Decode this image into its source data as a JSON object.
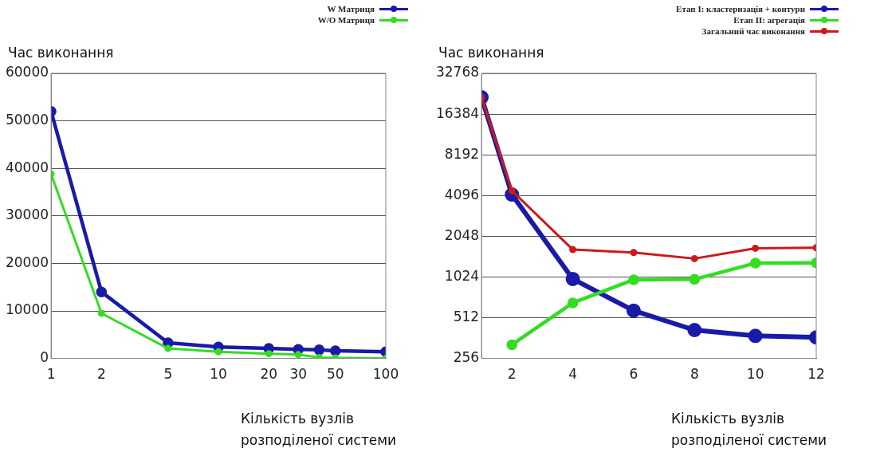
{
  "chart_data": [
    {
      "type": "line",
      "ylabel": "Час виконання",
      "xlabel": "Кількість вузлів розподіленої системи",
      "log": "x",
      "grid": "y",
      "legend": "top right",
      "marker": "circle",
      "line_style": "solid",
      "x": [
        1,
        2,
        5,
        10,
        20,
        30,
        40,
        50,
        100
      ],
      "xlim": [
        1,
        100
      ],
      "xticks": [
        1,
        2,
        5,
        10,
        20,
        30,
        50,
        100
      ],
      "ylim": [
        0,
        60000
      ],
      "yticks": [
        0,
        10000,
        20000,
        30000,
        40000,
        50000,
        60000
      ],
      "series": [
        {
          "name": "W Матриця",
          "color": "#1a1aa8",
          "values": [
            52000,
            14000,
            3300,
            2400,
            2100,
            1900,
            1800,
            1600,
            1400
          ]
        },
        {
          "name": "W/O Матриця",
          "color": "#33dd22",
          "values": [
            38800,
            9500,
            2100,
            1400,
            1000,
            800,
            200,
            100,
            0
          ]
        }
      ]
    },
    {
      "type": "line",
      "ylabel": "Час виконання",
      "xlabel": "Кількість вузлів розподіленої системи",
      "log": "y",
      "grid": "y",
      "legend": "top right",
      "marker": "circle",
      "line_style": "solid",
      "xlim": [
        1,
        12
      ],
      "xticks": [
        2,
        4,
        6,
        8,
        10,
        12
      ],
      "ylim": [
        256,
        32768
      ],
      "yticks": [
        256,
        512,
        1024,
        2048,
        4096,
        8192,
        16384,
        32768
      ],
      "series": [
        {
          "name": "Етап І: кластеризація + контури",
          "color": "#1a1aa8",
          "x": [
            1,
            2,
            4,
            6,
            8,
            10,
            12
          ],
          "values": [
            21800,
            4160,
            990,
            577,
            415,
            376,
            366
          ]
        },
        {
          "name": "Етап ІІ:  агрегація",
          "color": "#33dd22",
          "x": [
            2,
            4,
            6,
            8,
            10,
            12
          ],
          "values": [
            323,
            659,
            976,
            984,
            1296,
            1300
          ]
        },
        {
          "name": "Загальний час виконання",
          "color": "#cc1a1a",
          "x": [
            1,
            2,
            4,
            6,
            8,
            10,
            12
          ],
          "values": [
            21800,
            4440,
            1632,
            1552,
            1400,
            1669,
            1684
          ]
        }
      ]
    }
  ]
}
